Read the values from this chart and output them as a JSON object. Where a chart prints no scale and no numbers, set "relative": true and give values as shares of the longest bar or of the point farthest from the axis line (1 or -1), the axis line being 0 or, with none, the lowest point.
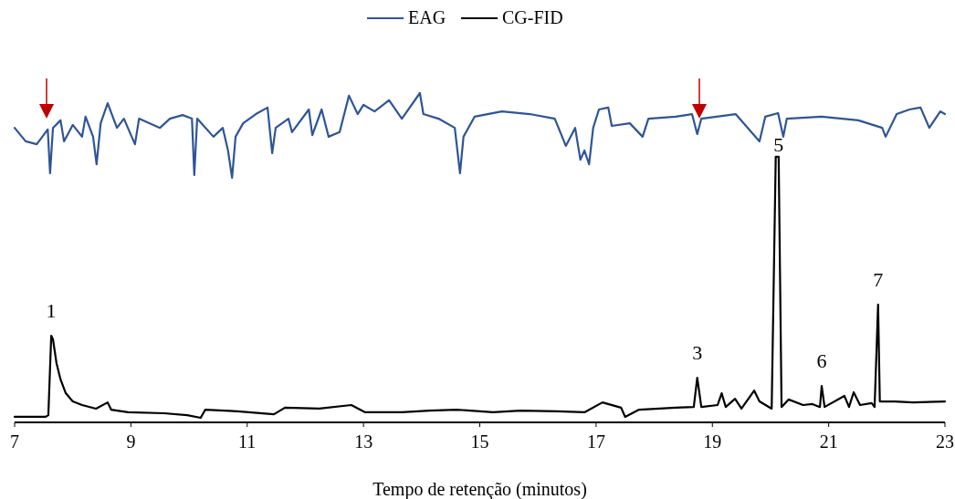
{
  "chart_data": {
    "type": "line",
    "relative": true,
    "xlabel": "Tempo de retenção (minutos)",
    "xlim": [
      7,
      23
    ],
    "xticks": [
      7,
      9,
      11,
      13,
      15,
      17,
      19,
      21,
      23
    ],
    "grid": false,
    "legend": "top",
    "marker": "none",
    "line_style": "solid",
    "series": [
      {
        "name": "EAG",
        "color": "#2e5597",
        "x": [
          7.0,
          7.19,
          7.38,
          7.57,
          7.61,
          7.66,
          7.79,
          7.85,
          8.0,
          8.16,
          8.22,
          8.35,
          8.41,
          8.48,
          8.6,
          8.76,
          8.88,
          9.07,
          9.14,
          9.5,
          9.67,
          9.89,
          10.05,
          10.09,
          10.14,
          10.42,
          10.58,
          10.67,
          10.74,
          10.8,
          10.93,
          11.15,
          11.35,
          11.43,
          11.49,
          11.71,
          11.77,
          12.06,
          12.12,
          12.28,
          12.4,
          12.59,
          12.75,
          12.9,
          13.0,
          13.19,
          13.44,
          13.66,
          13.97,
          14.03,
          14.29,
          14.57,
          14.66,
          14.72,
          14.91,
          15.38,
          15.86,
          16.29,
          16.48,
          16.64,
          16.73,
          16.8,
          16.88,
          16.95,
          17.05,
          17.21,
          17.27,
          17.58,
          17.8,
          17.9,
          18.37,
          18.65,
          18.74,
          18.81,
          19.4,
          19.81,
          19.91,
          20.13,
          20.22,
          20.28,
          20.88,
          21.51,
          21.92,
          21.98,
          22.17,
          22.39,
          22.58,
          22.73,
          22.92,
          23.0
        ],
        "values": [
          0.894,
          0.853,
          0.844,
          0.889,
          0.756,
          0.894,
          0.917,
          0.853,
          0.903,
          0.867,
          0.928,
          0.867,
          0.783,
          0.908,
          0.969,
          0.894,
          0.922,
          0.844,
          0.922,
          0.894,
          0.922,
          0.933,
          0.922,
          0.75,
          0.922,
          0.867,
          0.894,
          0.825,
          0.742,
          0.867,
          0.908,
          0.936,
          0.956,
          0.817,
          0.894,
          0.922,
          0.881,
          0.95,
          0.872,
          0.95,
          0.867,
          0.881,
          0.992,
          0.936,
          0.964,
          0.944,
          0.978,
          0.922,
          1.0,
          0.936,
          0.922,
          0.894,
          0.756,
          0.867,
          0.928,
          0.944,
          0.936,
          0.922,
          0.839,
          0.894,
          0.797,
          0.825,
          0.783,
          0.894,
          0.95,
          0.956,
          0.9,
          0.908,
          0.867,
          0.922,
          0.928,
          0.936,
          0.875,
          0.922,
          0.936,
          0.853,
          0.928,
          0.939,
          0.867,
          0.922,
          0.928,
          0.917,
          0.894,
          0.867,
          0.936,
          0.95,
          0.956,
          0.894,
          0.944,
          0.936
        ]
      },
      {
        "name": "CG-FID",
        "color": "#000000",
        "x": [
          7.0,
          7.53,
          7.58,
          7.63,
          7.66,
          7.72,
          7.79,
          7.88,
          8.0,
          8.16,
          8.4,
          8.6,
          8.66,
          8.95,
          9.57,
          9.97,
          10.2,
          10.28,
          10.83,
          11.46,
          11.65,
          12.24,
          12.79,
          13.03,
          13.66,
          14.13,
          14.6,
          15.23,
          15.7,
          16.33,
          16.8,
          17.11,
          17.43,
          17.5,
          17.74,
          18.37,
          18.68,
          18.74,
          18.81,
          19.09,
          19.16,
          19.23,
          19.39,
          19.5,
          19.72,
          19.81,
          20.02,
          20.09,
          20.14,
          20.19,
          20.31,
          20.56,
          20.72,
          20.85,
          20.88,
          20.93,
          21.27,
          21.35,
          21.43,
          21.54,
          21.74,
          21.79,
          21.85,
          21.88,
          22.14,
          22.45,
          23.0
        ],
        "values": [
          0.014,
          0.014,
          0.019,
          0.261,
          0.25,
          0.178,
          0.128,
          0.086,
          0.061,
          0.05,
          0.039,
          0.058,
          0.036,
          0.028,
          0.025,
          0.019,
          0.011,
          0.036,
          0.031,
          0.022,
          0.042,
          0.039,
          0.05,
          0.028,
          0.028,
          0.033,
          0.036,
          0.028,
          0.033,
          0.031,
          0.028,
          0.058,
          0.042,
          0.014,
          0.036,
          0.042,
          0.044,
          0.133,
          0.044,
          0.05,
          0.086,
          0.044,
          0.069,
          0.039,
          0.094,
          0.061,
          0.039,
          0.806,
          0.806,
          0.044,
          0.067,
          0.05,
          0.053,
          0.044,
          0.108,
          0.044,
          0.078,
          0.044,
          0.089,
          0.05,
          0.056,
          0.044,
          0.356,
          0.061,
          0.061,
          0.058,
          0.061
        ]
      }
    ],
    "annotations": [
      {
        "text": "1",
        "x": 7.63,
        "y": 0.261
      },
      {
        "text": "3",
        "x": 18.74,
        "y": 0.133
      },
      {
        "text": "5",
        "x": 20.14,
        "y": 0.806
      },
      {
        "text": "6",
        "x": 20.88,
        "y": 0.108
      },
      {
        "text": "7",
        "x": 21.85,
        "y": 0.356
      }
    ]
  }
}
